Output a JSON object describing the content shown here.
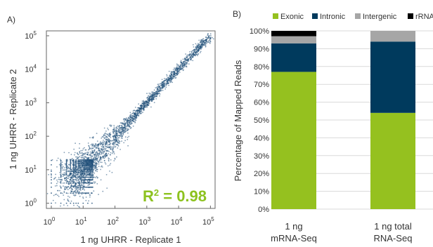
{
  "panel_labels": {
    "a": "A)",
    "b": "B)"
  },
  "chart_data": [
    {
      "type": "scatter",
      "xlabel": "1 ng UHRR - Replicate 1",
      "ylabel": "1 ng UHRR - Replicate 2",
      "x_scale": "log",
      "y_scale": "log",
      "xlim": [
        0.7,
        140000
      ],
      "ylim": [
        0.7,
        140000
      ],
      "x_ticks": [
        {
          "base": "10",
          "exp": "0",
          "value": 1
        },
        {
          "base": "10",
          "exp": "1",
          "value": 10
        },
        {
          "base": "10",
          "exp": "2",
          "value": 100
        },
        {
          "base": "10",
          "exp": "3",
          "value": 1000
        },
        {
          "base": "10",
          "exp": "4",
          "value": 10000
        },
        {
          "base": "10",
          "exp": "5",
          "value": 100000
        }
      ],
      "y_ticks": [
        {
          "base": "10",
          "exp": "0",
          "value": 1
        },
        {
          "base": "10",
          "exp": "1",
          "value": 10
        },
        {
          "base": "10",
          "exp": "2",
          "value": 100
        },
        {
          "base": "10",
          "exp": "3",
          "value": 1000
        },
        {
          "base": "10",
          "exp": "4",
          "value": 10000
        },
        {
          "base": "10",
          "exp": "5",
          "value": 100000
        }
      ],
      "annotation": {
        "base": "R",
        "exp": "2",
        "rest": " = 0.98",
        "color": "#8dc21f"
      },
      "point_color": "#1f4e79",
      "grid": false
    },
    {
      "type": "bar",
      "stacked": true,
      "categories": [
        {
          "line1": "1 ng",
          "line2": "mRNA-Seq"
        },
        {
          "line1": "1 ng total",
          "line2": "RNA-Seq"
        }
      ],
      "ylabel": "Percentage of Mapped Reads",
      "ylim": [
        0,
        100
      ],
      "y_ticks": [
        "0%",
        "10%",
        "20%",
        "30%",
        "40%",
        "50%",
        "60%",
        "70%",
        "80%",
        "90%",
        "100%"
      ],
      "series": [
        {
          "name": "Exonic",
          "color": "#95c11f",
          "values": [
            77,
            54
          ]
        },
        {
          "name": "Intronic",
          "color": "#003a5d",
          "values": [
            16,
            40
          ]
        },
        {
          "name": "Intergenic",
          "color": "#a6a6a6",
          "values": [
            4,
            6
          ]
        },
        {
          "name": "rRNA",
          "color": "#000000",
          "values": [
            3,
            0
          ]
        }
      ],
      "legend_position": "top",
      "grid": true
    }
  ]
}
